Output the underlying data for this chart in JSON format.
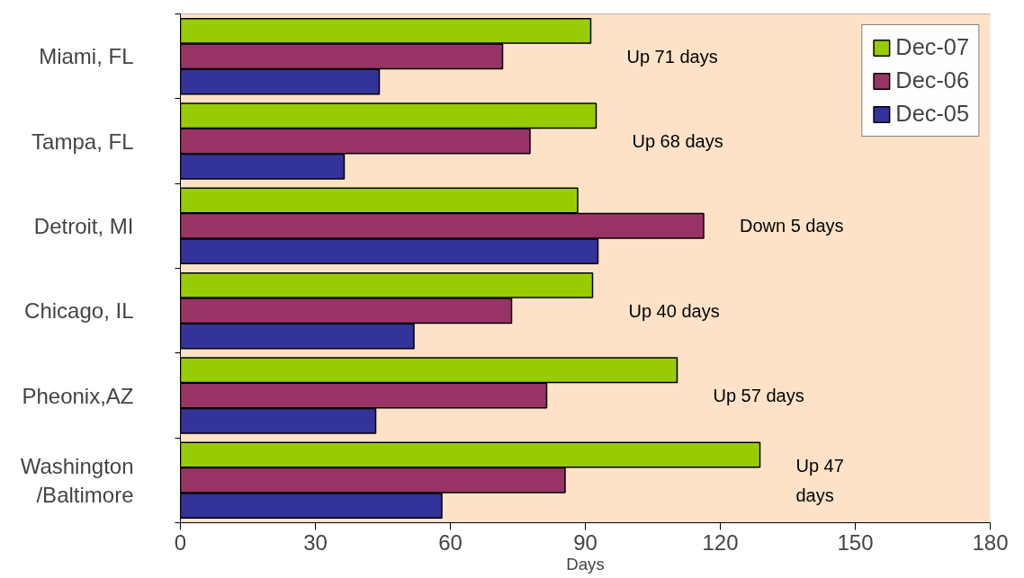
{
  "chart_data": {
    "type": "bar",
    "orientation": "horizontal",
    "xlabel": "Days",
    "categories": [
      "Miami, FL",
      "Tampa, FL",
      "Detroit, MI",
      "Chicago, IL",
      "Pheonix,AZ",
      "Washington\n/Baltimore"
    ],
    "series": [
      {
        "name": "Dec-07",
        "color": "#99cc00",
        "values": [
          91.2,
          92.4,
          88.3,
          91.6,
          110.4,
          128.8
        ]
      },
      {
        "name": "Dec-06",
        "color": "#993366",
        "values": [
          71.6,
          77.7,
          116.3,
          73.6,
          81.4,
          85.5
        ]
      },
      {
        "name": "Dec-05",
        "color": "#333399",
        "values": [
          44.2,
          36.4,
          92.8,
          51.9,
          43.4,
          58.1
        ]
      }
    ],
    "xlim": [
      0,
      180
    ],
    "xticks": [
      0,
      30,
      60,
      90,
      120,
      150,
      180
    ],
    "grid": false,
    "legend": "top right",
    "annotations": [
      "Up 71  days",
      "Up 68  days",
      "Down 5  days",
      "Up 40  days",
      "Up 57  days",
      "Up 47\ndays"
    ]
  }
}
